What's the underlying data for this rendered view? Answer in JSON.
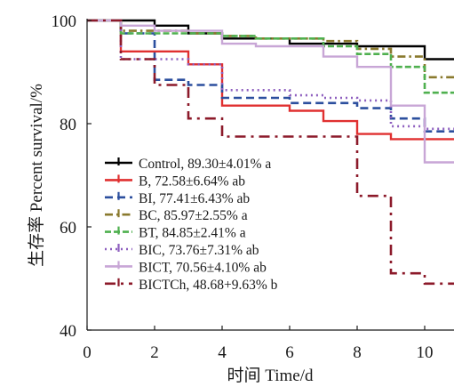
{
  "chart_data": {
    "type": "line",
    "step": true,
    "xlabel": "时间 Time/d",
    "ylabel": "生存率 Percent survival/%",
    "xlim": [
      0,
      11
    ],
    "ylim": [
      40,
      100
    ],
    "xticks": [
      0,
      2,
      4,
      6,
      8,
      10
    ],
    "yticks": [
      40,
      60,
      80,
      100
    ],
    "grid": false,
    "legend_position": "lower-left",
    "series": [
      {
        "name": "Control, 89.30±4.01% a",
        "color": "#000000",
        "dash": "solid",
        "x": [
          0,
          2,
          3,
          4,
          6,
          8,
          10,
          11
        ],
        "y": [
          100,
          99,
          97.5,
          96.5,
          95.5,
          95,
          92.5,
          92.5
        ]
      },
      {
        "name": "B, 72.58±6.64% ab",
        "color": "#e03030",
        "dash": "solid",
        "x": [
          0,
          1,
          3,
          4,
          6,
          7,
          8,
          9,
          11
        ],
        "y": [
          100,
          94,
          91.5,
          83.5,
          82.5,
          80.5,
          78,
          77,
          77
        ]
      },
      {
        "name": "BI, 77.41±6.43% ab",
        "color": "#2c4f9e",
        "dash": "dash",
        "x": [
          0,
          1,
          2,
          3,
          4,
          6,
          8,
          9,
          10,
          11
        ],
        "y": [
          100,
          97.5,
          88.5,
          87.5,
          85,
          84,
          83,
          81,
          78.5,
          78.5
        ]
      },
      {
        "name": "BC, 85.97±2.55% a",
        "color": "#8a7a2e",
        "dash": "dashdot",
        "x": [
          0,
          1,
          3,
          4,
          5,
          7,
          8,
          9,
          10,
          11
        ],
        "y": [
          100,
          98,
          97.5,
          97,
          96.5,
          96,
          94.5,
          93,
          89,
          89
        ]
      },
      {
        "name": "BT, 84.85±2.41% a",
        "color": "#4fb04f",
        "dash": "dense",
        "x": [
          0,
          1,
          3,
          4,
          5,
          7,
          8,
          9,
          10,
          11
        ],
        "y": [
          100,
          97.5,
          97.5,
          97,
          96.5,
          95,
          93.5,
          91,
          86,
          86
        ]
      },
      {
        "name": "BIC, 73.76±7.31% ab",
        "color": "#8e5fbf",
        "dash": "dot",
        "x": [
          0,
          1,
          3,
          4,
          6,
          7,
          8,
          9,
          10,
          11
        ],
        "y": [
          100,
          92.5,
          91.5,
          86.5,
          85.5,
          85,
          84.5,
          79.5,
          79,
          79
        ]
      },
      {
        "name": "BICT, 70.56±4.10% ab",
        "color": "#c8a6d6",
        "dash": "solid",
        "x": [
          0,
          1,
          2,
          4,
          5,
          7,
          8,
          9,
          10,
          11
        ],
        "y": [
          100,
          99,
          98,
          95.5,
          95,
          93,
          91,
          83.5,
          72.5,
          72.5
        ]
      },
      {
        "name": "BICTCh, 48.68+9.63% b",
        "color": "#8c1a2a",
        "dash": "longdashdot",
        "x": [
          0,
          1,
          2,
          3,
          4,
          8,
          9,
          10,
          11
        ],
        "y": [
          100,
          92.5,
          87.5,
          81,
          77.5,
          66,
          51,
          49,
          49
        ]
      }
    ]
  }
}
